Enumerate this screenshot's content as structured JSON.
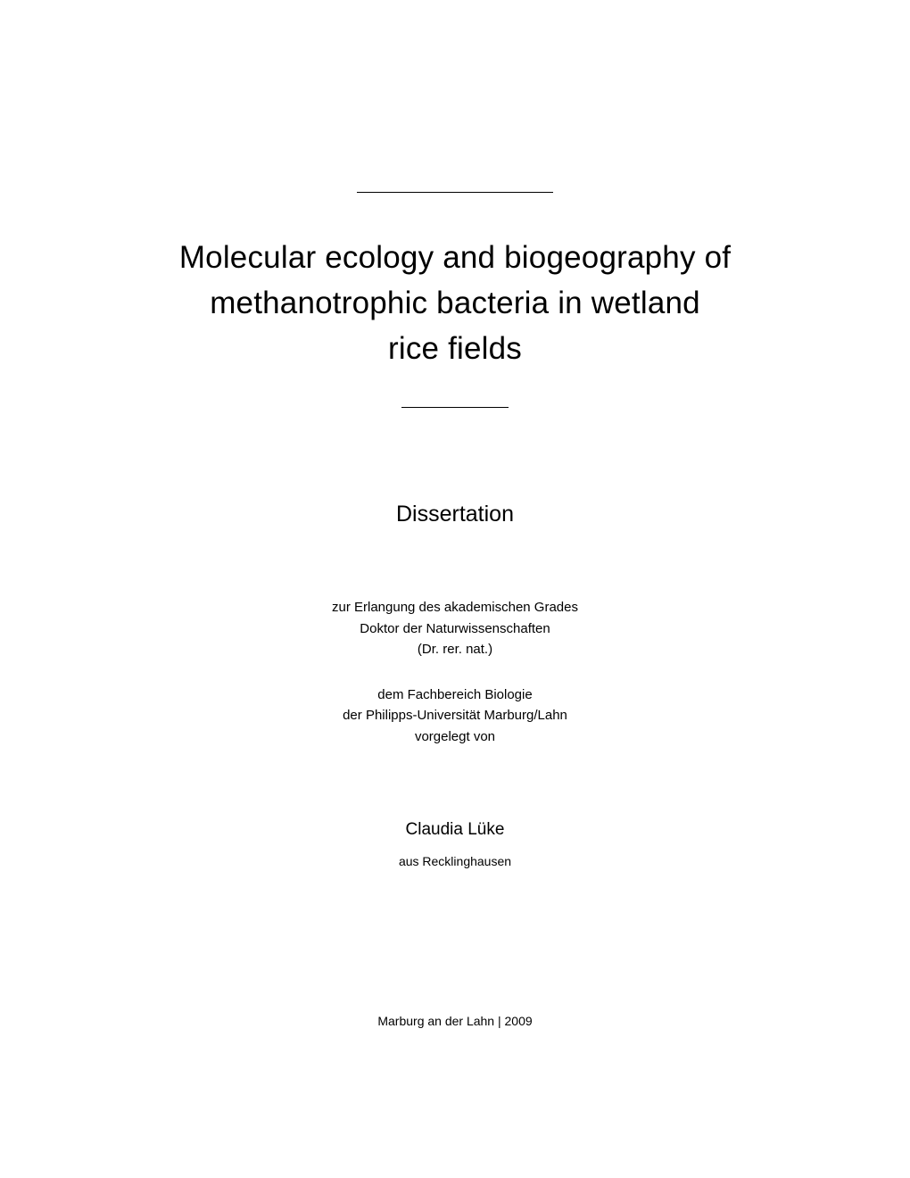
{
  "title": {
    "line1": "Molecular ecology and biogeography of",
    "line2": "methanotrophic bacteria in wetland",
    "line3": "rice fields"
  },
  "document_type": "Dissertation",
  "degree": {
    "line1": "zur Erlangung des akademischen Grades",
    "line2": "Doktor der Naturwissenschaften",
    "line3": "(Dr. rer. nat.)"
  },
  "department": {
    "line1": "dem Fachbereich Biologie",
    "line2": "der Philipps-Universität Marburg/Lahn",
    "line3": "vorgelegt von"
  },
  "author": {
    "name": "Claudia Lüke",
    "origin": "aus Recklinghausen"
  },
  "footer": "Marburg an der Lahn | 2009",
  "colors": {
    "background": "#ffffff",
    "text": "#000000",
    "divider": "#000000"
  }
}
